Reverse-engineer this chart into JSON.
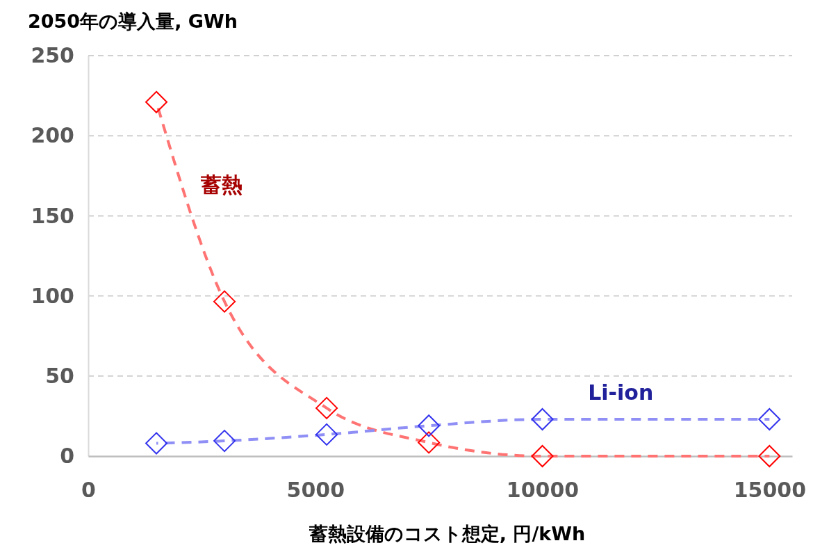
{
  "chart_data": {
    "type": "line",
    "title": "2050年の導入量, GWh",
    "xlabel": "蓄熱設備のコスト想定, 円/kWh",
    "x": [
      1500,
      3000,
      5250,
      7500,
      10000,
      15000
    ],
    "series": [
      {
        "name": "蓄熱",
        "color": "#ff0000",
        "values": [
          221,
          96.5,
          30,
          8.5,
          0,
          0
        ]
      },
      {
        "name": "Li-ion",
        "color": "#3333ee",
        "values": [
          8,
          9.5,
          13.5,
          19,
          23,
          23
        ]
      }
    ],
    "xlim": [
      0,
      15500
    ],
    "xticks": [
      0,
      5000,
      10000,
      15000
    ],
    "ylim": [
      0,
      250
    ],
    "yticks": [
      0,
      50,
      100,
      150,
      200,
      250
    ],
    "grid": "y",
    "marker": "diamond",
    "line_style": "dashed"
  }
}
